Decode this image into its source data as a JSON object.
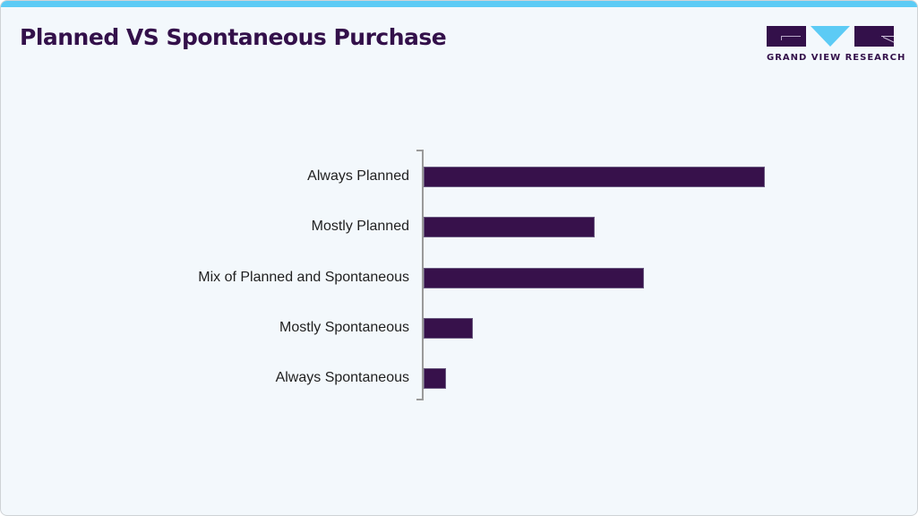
{
  "header": {
    "title": "Planned VS Spontaneous Purchase",
    "accent_color": "#5ccbf5",
    "brand_color": "#33104a"
  },
  "logo": {
    "text": "GRAND VIEW RESEARCH",
    "icon": "gvr-logo-icon"
  },
  "chart_data": {
    "type": "bar",
    "orientation": "horizontal",
    "title": "Planned VS Spontaneous Purchase",
    "xlabel": "",
    "ylabel": "",
    "categories": [
      "Always Planned",
      "Mostly Planned",
      "Mix of Planned and Spontaneous",
      "Mostly Spontaneous",
      "Always Spontaneous"
    ],
    "values": [
      38,
      19,
      24.5,
      5.5,
      2.5
    ],
    "value_unit": "estimated % share (no axis labels shown)",
    "grid": false,
    "legend": "none",
    "bar_color": "#37114b"
  }
}
